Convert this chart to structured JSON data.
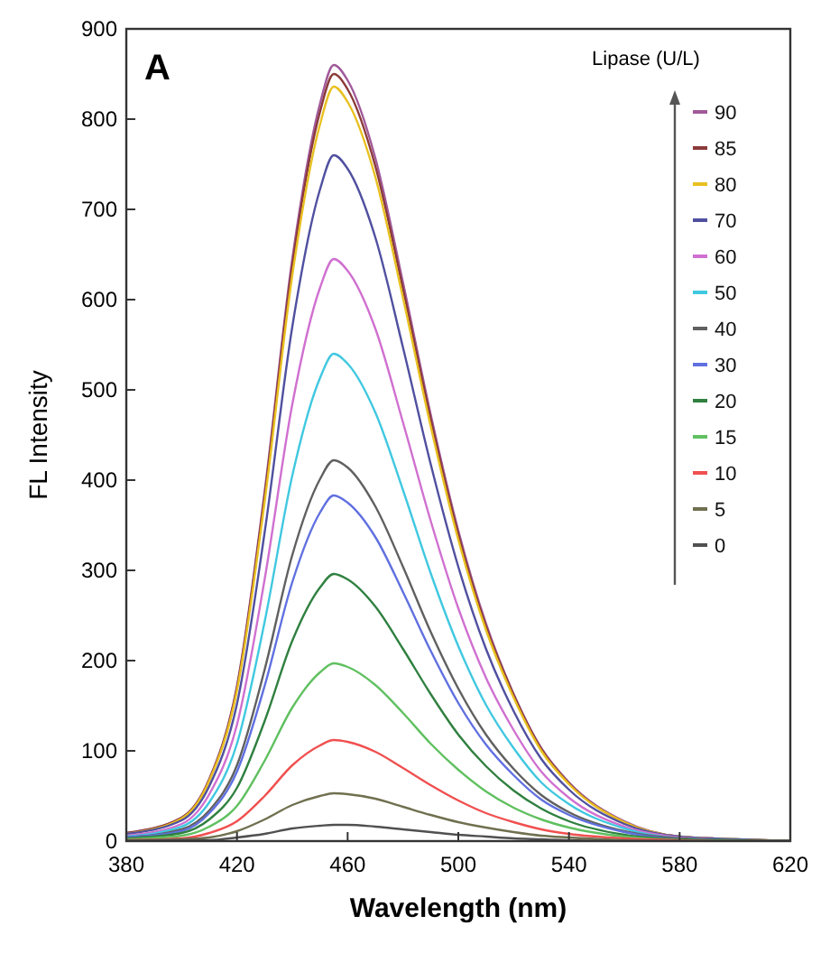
{
  "chart_data": {
    "type": "line",
    "xlabel": "Wavelength (nm)",
    "ylabel": "FL Intensity",
    "legend_title": "Lipase (U/L)",
    "legend": "top right",
    "annotations": [
      "A"
    ],
    "x": [
      380,
      400,
      410,
      420,
      430,
      440,
      450,
      455,
      460,
      470,
      480,
      490,
      500,
      510,
      520,
      530,
      540,
      560,
      580,
      600,
      620
    ],
    "xlim": [
      380,
      620
    ],
    "xticks": [
      380,
      420,
      460,
      500,
      540,
      580,
      620
    ],
    "ylim": [
      0,
      900
    ],
    "yticks": [
      0,
      100,
      200,
      300,
      400,
      500,
      600,
      700,
      800,
      900
    ],
    "series": [
      {
        "name": "90",
        "color": "#a05a9a",
        "values": [
          9,
          26,
          69,
          172,
          387,
          645,
          817,
          860,
          843,
          757,
          619,
          473,
          344,
          241,
          163,
          103,
          65,
          22,
          5,
          2,
          0
        ]
      },
      {
        "name": "85",
        "color": "#8b3a3a",
        "values": [
          9,
          26,
          68,
          170,
          383,
          638,
          808,
          850,
          833,
          748,
          612,
          468,
          340,
          238,
          162,
          102,
          64,
          21,
          5,
          2,
          0
        ]
      },
      {
        "name": "80",
        "color": "#e8c020",
        "values": [
          8,
          25,
          67,
          167,
          376,
          627,
          794,
          836,
          819,
          736,
          602,
          460,
          334,
          234,
          159,
          100,
          63,
          21,
          5,
          2,
          0
        ]
      },
      {
        "name": "70",
        "color": "#5050a0",
        "values": [
          8,
          23,
          61,
          152,
          342,
          570,
          722,
          760,
          745,
          669,
          547,
          418,
          304,
          213,
          144,
          91,
          57,
          19,
          5,
          2,
          0
        ]
      },
      {
        "name": "60",
        "color": "#d070d0",
        "values": [
          6,
          19,
          52,
          129,
          290,
          484,
          613,
          645,
          632,
          568,
          464,
          355,
          258,
          181,
          123,
          77,
          48,
          16,
          4,
          1,
          0
        ]
      },
      {
        "name": "50",
        "color": "#40c8e0",
        "values": [
          5,
          16,
          43,
          108,
          243,
          405,
          513,
          540,
          529,
          475,
          389,
          297,
          216,
          151,
          103,
          65,
          41,
          14,
          3,
          1,
          0
        ]
      },
      {
        "name": "40",
        "color": "#606060",
        "values": [
          4,
          13,
          34,
          84,
          190,
          317,
          401,
          422,
          414,
          371,
          304,
          232,
          169,
          118,
          80,
          51,
          32,
          11,
          3,
          1,
          0
        ]
      },
      {
        "name": "30",
        "color": "#6070e0",
        "values": [
          4,
          11,
          31,
          77,
          172,
          287,
          364,
          383,
          375,
          337,
          276,
          211,
          153,
          107,
          73,
          46,
          29,
          10,
          2,
          1,
          0
        ]
      },
      {
        "name": "20",
        "color": "#308040",
        "values": [
          3,
          9,
          24,
          59,
          133,
          222,
          281,
          296,
          290,
          260,
          213,
          163,
          118,
          83,
          56,
          36,
          22,
          7,
          2,
          1,
          0
        ]
      },
      {
        "name": "15",
        "color": "#60c060",
        "values": [
          2,
          6,
          16,
          39,
          89,
          148,
          187,
          197,
          193,
          173,
          142,
          108,
          79,
          55,
          37,
          24,
          15,
          5,
          1,
          0,
          0
        ]
      },
      {
        "name": "10",
        "color": "#f05050",
        "values": [
          1,
          3,
          9,
          22,
          50,
          84,
          106,
          112,
          110,
          99,
          81,
          62,
          45,
          31,
          21,
          13,
          8,
          3,
          1,
          0,
          0
        ]
      },
      {
        "name": "5",
        "color": "#707050",
        "values": [
          1,
          2,
          4,
          11,
          24,
          40,
          50,
          53,
          52,
          47,
          38,
          29,
          21,
          15,
          10,
          6,
          4,
          1,
          0,
          0,
          0
        ]
      },
      {
        "name": "0",
        "color": "#505050",
        "values": [
          0,
          1,
          1,
          4,
          8,
          14,
          17,
          18,
          18,
          16,
          13,
          10,
          7,
          5,
          3,
          2,
          1,
          0,
          0,
          0,
          0
        ]
      }
    ]
  }
}
